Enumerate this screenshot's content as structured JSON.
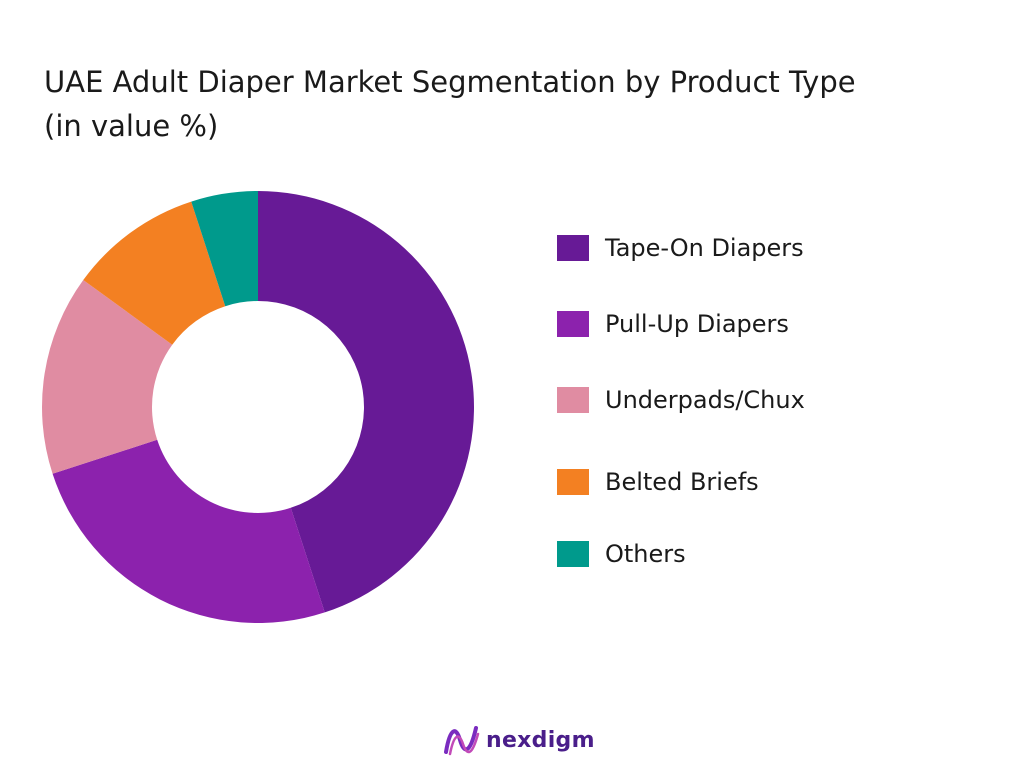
{
  "chart_data": {
    "type": "pie",
    "title": "UAE Adult Diaper Market Segmentation by Product Type",
    "subtitle": "(in value %)",
    "donut": true,
    "legend_placement": "right",
    "categories": [
      "Tape-On Diapers",
      "Pull-Up Diapers",
      "Underpads/Chux",
      "Belted Briefs",
      "Others"
    ],
    "values": [
      45,
      25,
      15,
      10,
      5
    ],
    "colors": [
      "#671a96",
      "#8c22ad",
      "#e08ca2",
      "#f38022",
      "#009a8c"
    ]
  },
  "brand": {
    "name": "nexdigm",
    "icon": "nexdigm-logo-icon",
    "color": "#4a1e8a"
  }
}
